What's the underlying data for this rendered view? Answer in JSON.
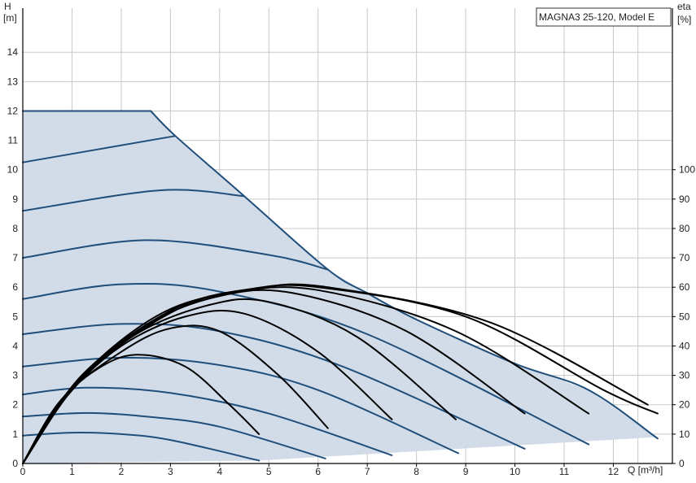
{
  "chart_data": {
    "type": "line",
    "title": "MAGNA3 25-120, Model E",
    "y_axis_left": {
      "label_line1": "H",
      "label_line2": "[m]",
      "range": [
        0,
        15.5
      ],
      "ticks": [
        0,
        1,
        2,
        3,
        4,
        5,
        6,
        7,
        8,
        9,
        10,
        11,
        12,
        13,
        14
      ]
    },
    "y_axis_right": {
      "label_line1": "eta",
      "label_line2": "[%]",
      "range": [
        0,
        155
      ],
      "ticks": [
        0,
        10,
        20,
        30,
        40,
        50,
        60,
        70,
        80,
        90,
        100
      ]
    },
    "x_axis": {
      "label": "Q [m³/h]",
      "range": [
        0,
        13.2
      ],
      "ticks": [
        0,
        1,
        2,
        3,
        4,
        5,
        6,
        7,
        8,
        9,
        10,
        11,
        12
      ]
    },
    "grid": true,
    "colors": {
      "envelope_fill": "#d2dce8",
      "head_curve": "#1f4e7a",
      "efficiency_curve": "#000000",
      "grid": "#c8c8c8"
    },
    "operating_envelope": {
      "name": "",
      "points": [
        [
          0,
          12
        ],
        [
          2.6,
          12
        ],
        [
          3.1,
          11.15
        ],
        [
          4.5,
          9.1
        ],
        [
          6.2,
          6.6
        ],
        [
          7,
          5.8
        ],
        [
          8,
          4.9
        ],
        [
          10,
          3.4
        ],
        [
          11.5,
          2.5
        ],
        [
          12.9,
          0.9
        ],
        [
          4.8,
          0.1
        ],
        [
          0,
          0
        ]
      ]
    },
    "head_curves": [
      {
        "values": [
          [
            0,
            0.95
          ],
          [
            1,
            1.05
          ],
          [
            2,
            1.0
          ],
          [
            3,
            0.8
          ],
          [
            4.8,
            0.1
          ]
        ]
      },
      {
        "values": [
          [
            0,
            1.6
          ],
          [
            1.3,
            1.72
          ],
          [
            2.5,
            1.6
          ],
          [
            4,
            1.25
          ],
          [
            6.15,
            0.17
          ]
        ]
      },
      {
        "values": [
          [
            0,
            2.35
          ],
          [
            1.3,
            2.58
          ],
          [
            3,
            2.4
          ],
          [
            5,
            1.7
          ],
          [
            7.5,
            0.28
          ]
        ]
      },
      {
        "values": [
          [
            0,
            3.3
          ],
          [
            2,
            3.6
          ],
          [
            4,
            3.35
          ],
          [
            6,
            2.5
          ],
          [
            8.85,
            0.35
          ]
        ]
      },
      {
        "values": [
          [
            0,
            4.4
          ],
          [
            2,
            4.75
          ],
          [
            4,
            4.5
          ],
          [
            6.5,
            3.3
          ],
          [
            10.2,
            0.5
          ]
        ]
      },
      {
        "values": [
          [
            0,
            5.6
          ],
          [
            2,
            6.1
          ],
          [
            4,
            5.85
          ],
          [
            7,
            4.4
          ],
          [
            11.5,
            0.65
          ]
        ]
      },
      {
        "values": [
          [
            0,
            7.0
          ],
          [
            2.5,
            7.6
          ],
          [
            5,
            7.1
          ],
          [
            6.2,
            6.6
          ]
        ]
      },
      {
        "values": [
          [
            0,
            8.6
          ],
          [
            2.8,
            9.3
          ],
          [
            4.5,
            9.1
          ]
        ]
      },
      {
        "values": [
          [
            0,
            10.25
          ],
          [
            3.1,
            11.15
          ]
        ]
      },
      {
        "values": [
          [
            0,
            12.0
          ],
          [
            2.6,
            12.0
          ]
        ]
      },
      {
        "values": [
          [
            2.6,
            12.0
          ],
          [
            3.1,
            11.15
          ],
          [
            4.5,
            9.1
          ],
          [
            6.2,
            6.6
          ],
          [
            7,
            5.8
          ],
          [
            8,
            4.9
          ],
          [
            10,
            3.4
          ],
          [
            11.5,
            2.5
          ],
          [
            12.9,
            0.85
          ]
        ]
      }
    ],
    "efficiency_curves": [
      {
        "values": [
          [
            0,
            0
          ],
          [
            0.7,
            20
          ],
          [
            1.5,
            32
          ],
          [
            2.3,
            37
          ],
          [
            3.3,
            33
          ],
          [
            4.2,
            20
          ],
          [
            4.8,
            10
          ]
        ]
      },
      {
        "values": [
          [
            0,
            0
          ],
          [
            0.8,
            22
          ],
          [
            2,
            38
          ],
          [
            3,
            46
          ],
          [
            4,
            45
          ],
          [
            5.2,
            30
          ],
          [
            6.2,
            12
          ]
        ]
      },
      {
        "values": [
          [
            0,
            0
          ],
          [
            0.9,
            23
          ],
          [
            2,
            40
          ],
          [
            3.3,
            50
          ],
          [
            4.5,
            51
          ],
          [
            6,
            38
          ],
          [
            7.5,
            15
          ]
        ]
      },
      {
        "values": [
          [
            0,
            0
          ],
          [
            1,
            25
          ],
          [
            2.3,
            44
          ],
          [
            3.8,
            54
          ],
          [
            5,
            55
          ],
          [
            6.8,
            43
          ],
          [
            8.8,
            15
          ]
        ]
      },
      {
        "values": [
          [
            0,
            0
          ],
          [
            1,
            26
          ],
          [
            2.5,
            47
          ],
          [
            4,
            57
          ],
          [
            5.5,
            58
          ],
          [
            7.8,
            45
          ],
          [
            10.2,
            17
          ]
        ]
      },
      {
        "values": [
          [
            0,
            0
          ],
          [
            1.1,
            28
          ],
          [
            2.7,
            50
          ],
          [
            4.2,
            58
          ],
          [
            6,
            59
          ],
          [
            8.8,
            45
          ],
          [
            11.5,
            17
          ]
        ]
      },
      {
        "values": [
          [
            0,
            0
          ],
          [
            1.2,
            30
          ],
          [
            3,
            52
          ],
          [
            4.5,
            59
          ],
          [
            6,
            60
          ],
          [
            9,
            50
          ],
          [
            11.8,
            25
          ],
          [
            12.9,
            17
          ]
        ]
      },
      {
        "values": [
          [
            0,
            0
          ],
          [
            1.3,
            31
          ],
          [
            3.2,
            53
          ],
          [
            4.7,
            59.5
          ],
          [
            6.2,
            60
          ],
          [
            9.5,
            48
          ],
          [
            12.7,
            20
          ]
        ]
      }
    ]
  }
}
